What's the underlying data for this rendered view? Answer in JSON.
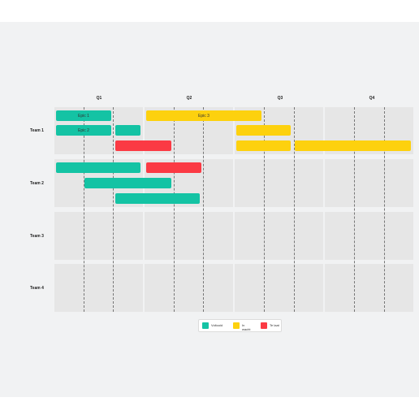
{
  "quarters": [
    "Q1",
    "Q2",
    "Q3",
    "Q4"
  ],
  "teams": [
    "Team 1",
    "Team 2",
    "Team 3",
    "Team 4"
  ],
  "bars": [
    {
      "team": "Team 1",
      "lane": 1,
      "status": "done",
      "label": "Epic 1"
    },
    {
      "team": "Team 1",
      "lane": 1,
      "status": "in_progress",
      "label": "Epic 3"
    },
    {
      "team": "Team 1",
      "lane": 2,
      "status": "done",
      "label": "Epic 2"
    },
    {
      "team": "Team 1",
      "lane": 2,
      "status": "done",
      "label": ""
    },
    {
      "team": "Team 1",
      "lane": 2,
      "status": "in_progress",
      "label": ""
    },
    {
      "team": "Team 1",
      "lane": 3,
      "status": "late",
      "label": ""
    },
    {
      "team": "Team 1",
      "lane": 3,
      "status": "in_progress",
      "label": ""
    },
    {
      "team": "Team 1",
      "lane": 3,
      "status": "in_progress",
      "label": ""
    },
    {
      "team": "Team 2",
      "lane": 1,
      "status": "done",
      "label": ""
    },
    {
      "team": "Team 2",
      "lane": 1,
      "status": "late",
      "label": ""
    },
    {
      "team": "Team 2",
      "lane": 2,
      "status": "done",
      "label": ""
    },
    {
      "team": "Team 2",
      "lane": 3,
      "status": "done",
      "label": ""
    }
  ],
  "legend": [
    {
      "status": "done",
      "label": "Voltooid",
      "color": "#14c3a4"
    },
    {
      "status": "in_progress",
      "label": "In wacht",
      "color": "#fdd10e"
    },
    {
      "status": "late",
      "label": "Te laat",
      "color": "#fb3a44"
    }
  ]
}
